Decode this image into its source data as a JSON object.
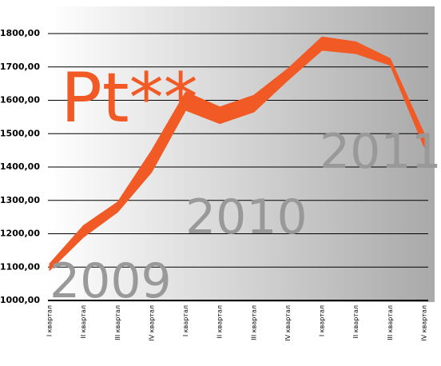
{
  "chart_data": {
    "type": "band",
    "categories": [
      "I квартал",
      "II квартал",
      "III квартал",
      "IV квартал",
      "I квартал",
      "II квартал",
      "III квартал",
      "IV квартал",
      "I квартал",
      "II квартал",
      "III квартал",
      "IV квартал"
    ],
    "upper": [
      1110,
      1225,
      1295,
      1450,
      1625,
      1580,
      1615,
      1695,
      1790,
      1775,
      1725,
      1500
    ],
    "lower": [
      1090,
      1190,
      1265,
      1385,
      1570,
      1530,
      1565,
      1660,
      1750,
      1740,
      1705,
      1460
    ],
    "color": "#f15a24",
    "ylim": [
      1000,
      1800
    ],
    "yticks": [
      {
        "value": 1000,
        "label": "1000,00"
      },
      {
        "value": 1100,
        "label": "1100,00"
      },
      {
        "value": 1200,
        "label": "1200,00"
      },
      {
        "value": 1300,
        "label": "1300,00"
      },
      {
        "value": 1400,
        "label": "1400,00"
      },
      {
        "value": 1500,
        "label": "1500,00"
      },
      {
        "value": 1600,
        "label": "1600,00"
      },
      {
        "value": 1700,
        "label": "1700,00"
      },
      {
        "value": 1800,
        "label": "1800,00"
      }
    ],
    "grid": true,
    "annotations": [
      "Pt**",
      "2009",
      "2010",
      "2011"
    ]
  }
}
